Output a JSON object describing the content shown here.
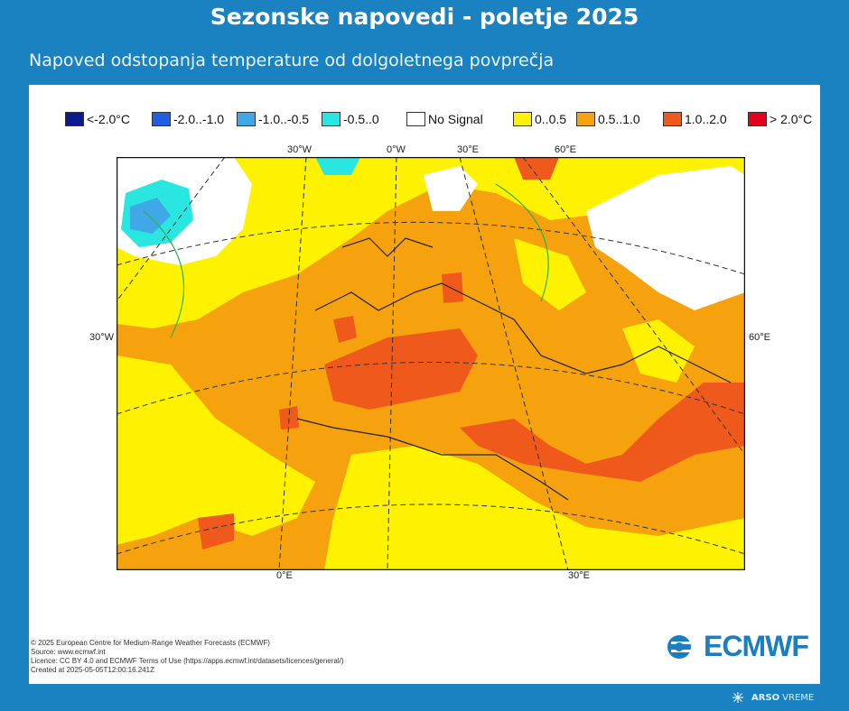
{
  "title": "Sezonske napovedi - poletje 2025",
  "subtitle": "Napoved odstopanja temperature od dolgoletnega povprečja",
  "legend": [
    {
      "label": "<-2.0°C",
      "color": "#0b1a8c"
    },
    {
      "label": "-2.0..-1.0",
      "color": "#1f5fe0"
    },
    {
      "label": "-1.0..-0.5",
      "color": "#41a8e8"
    },
    {
      "label": "-0.5..0",
      "color": "#2ae6e0"
    },
    {
      "label": "No Signal",
      "color": "#ffffff"
    },
    {
      "label": "0..0.5",
      "color": "#fff200"
    },
    {
      "label": "0.5..1.0",
      "color": "#f5a20e"
    },
    {
      "label": "1.0..2.0",
      "color": "#ef5a1c"
    },
    {
      "label": "> 2.0°C",
      "color": "#e3001b"
    }
  ],
  "coords": {
    "top": [
      "30°W",
      "0°W",
      "30°E",
      "60°E"
    ],
    "left": "30°W",
    "right": "60°E",
    "bottom": [
      "0°E",
      "30°E"
    ]
  },
  "footer": [
    "© 2025 European Centre for Medium-Range Weather Forecasts (ECMWF)",
    "Source: www.ecmwf.int",
    "Licence: CC BY 4.0 and ECMWF Terms of Use (https://apps.ecmwf.int/datasets/licences/general/)",
    "Created at 2025-05-05T12:00:16.241Z"
  ],
  "logo": "ECMWF",
  "brand": {
    "bold": "ARSO",
    "normal": "VREME"
  },
  "colors": {
    "background": "#1a82c0",
    "accent": "#1a7fc1"
  }
}
